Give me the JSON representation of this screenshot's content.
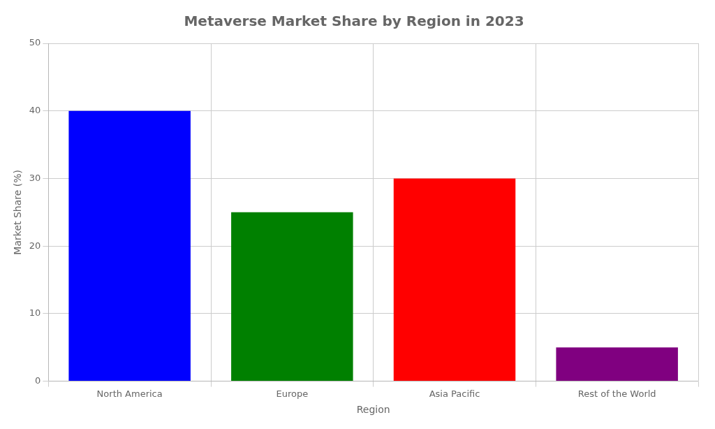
{
  "chart_data": {
    "type": "bar",
    "title": "Metaverse Market Share by Region in 2023",
    "xlabel": "Region",
    "ylabel": "Market Share (%)",
    "categories": [
      "North America",
      "Europe",
      "Asia Pacific",
      "Rest of the World"
    ],
    "values": [
      40,
      25,
      30,
      5
    ],
    "colors": [
      "#0000ff",
      "#008000",
      "#ff0000",
      "#800080"
    ],
    "ylim": [
      0,
      50
    ],
    "yticks": [
      0,
      10,
      20,
      30,
      40,
      50
    ],
    "grid": true
  }
}
